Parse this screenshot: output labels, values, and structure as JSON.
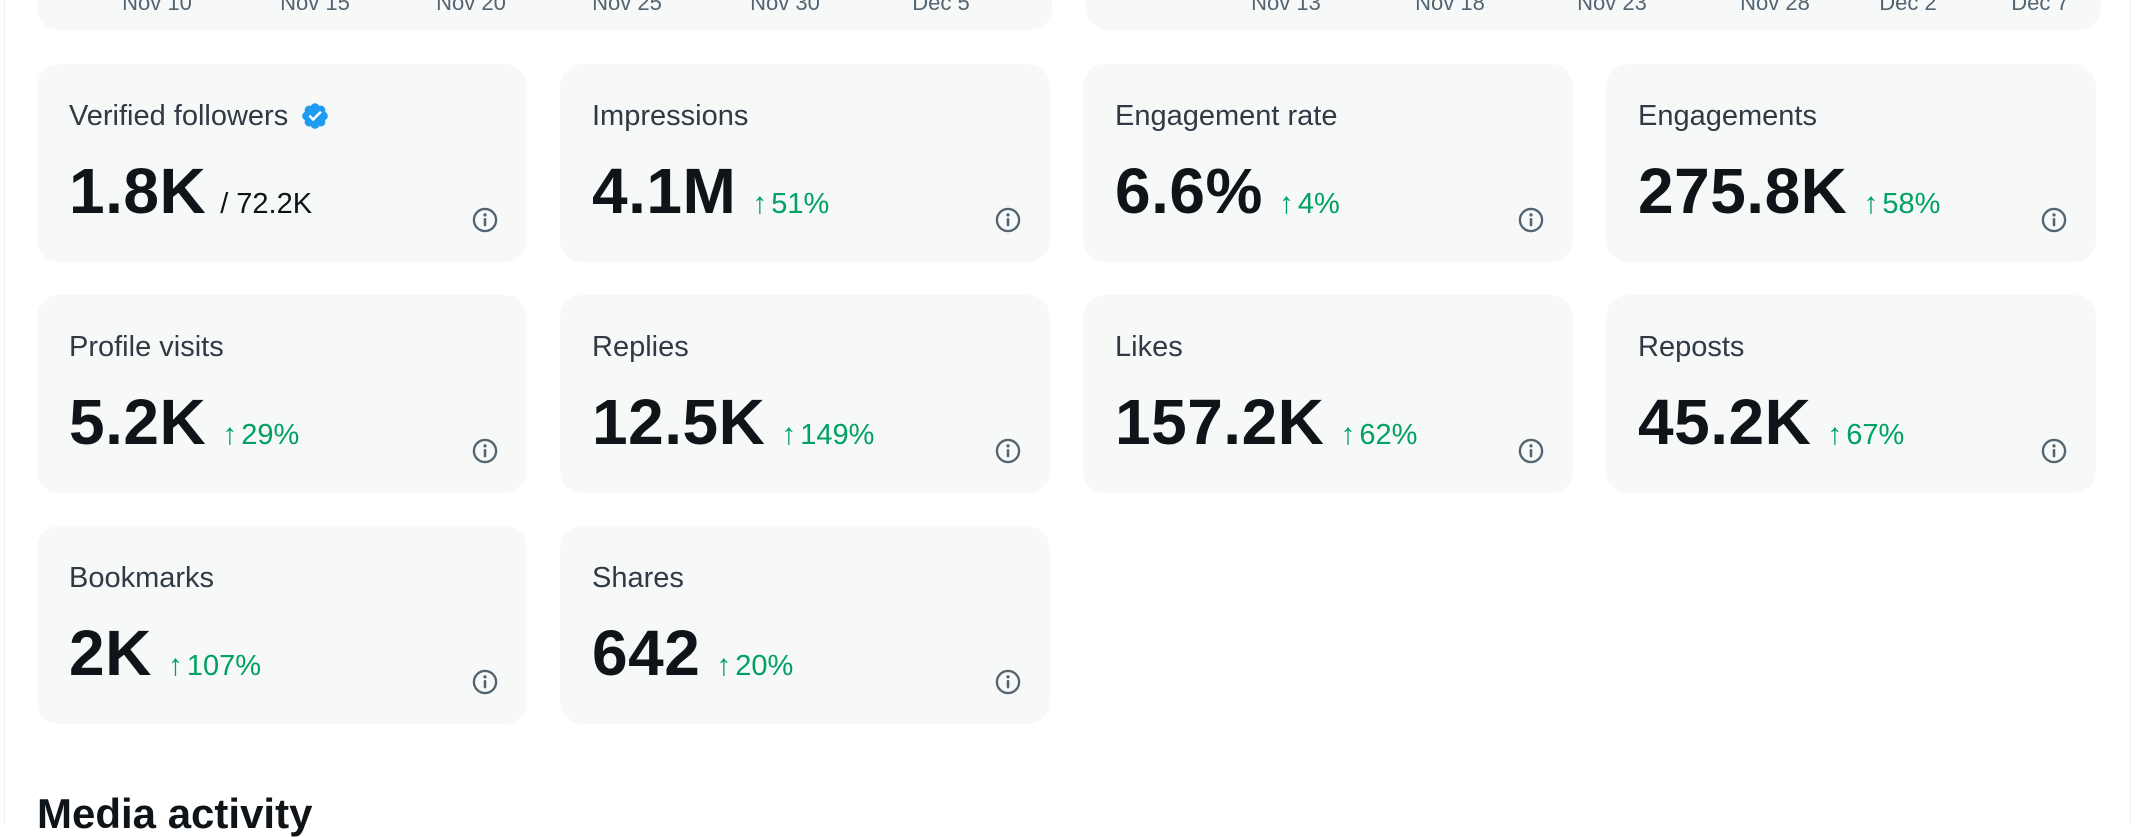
{
  "top_charts": [
    {
      "ticks": [
        "Nov 10",
        "Nov 15",
        "Nov 20",
        "Nov 25",
        "Nov 30",
        "Dec 5"
      ]
    },
    {
      "ticks": [
        "Nov 13",
        "Nov 18",
        "Nov 23",
        "Nov 28",
        "Dec 2",
        "Dec 7"
      ]
    }
  ],
  "metrics": [
    {
      "name": "verified-followers",
      "title": "Verified followers",
      "verified": true,
      "value": "1.8K",
      "sub": "/ 72.2K",
      "change": ""
    },
    {
      "name": "impressions",
      "title": "Impressions",
      "value": "4.1M",
      "sub": "",
      "change": "51%"
    },
    {
      "name": "engagement-rate",
      "title": "Engagement rate",
      "value": "6.6%",
      "sub": "",
      "change": "4%"
    },
    {
      "name": "engagements",
      "title": "Engagements",
      "value": "275.8K",
      "sub": "",
      "change": "58%"
    },
    {
      "name": "profile-visits",
      "title": "Profile visits",
      "value": "5.2K",
      "sub": "",
      "change": "29%"
    },
    {
      "name": "replies",
      "title": "Replies",
      "value": "12.5K",
      "sub": "",
      "change": "149%"
    },
    {
      "name": "likes",
      "title": "Likes",
      "value": "157.2K",
      "sub": "",
      "change": "62%"
    },
    {
      "name": "reposts",
      "title": "Reposts",
      "value": "45.2K",
      "sub": "",
      "change": "67%"
    },
    {
      "name": "bookmarks",
      "title": "Bookmarks",
      "value": "2K",
      "sub": "",
      "change": "107%"
    },
    {
      "name": "shares",
      "title": "Shares",
      "value": "642",
      "sub": "",
      "change": "20%"
    }
  ],
  "change_arrow": "↑",
  "colors": {
    "positive": "#00a163",
    "verified": "#1d9bf0",
    "card_bg": "#f7f9f9"
  },
  "icons": {
    "info": "info-circle-icon",
    "verified": "verified-badge-icon"
  },
  "media_activity": {
    "title": "Media activity"
  }
}
